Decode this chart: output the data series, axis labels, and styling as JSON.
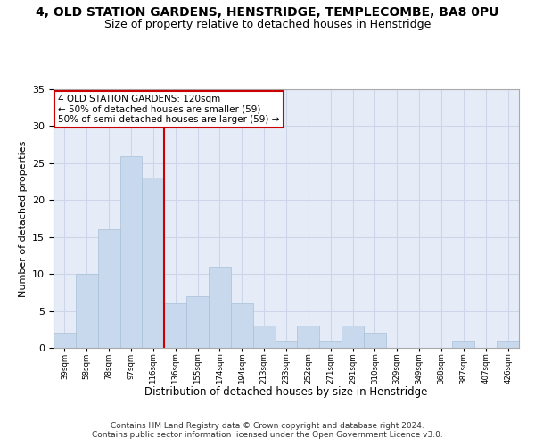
{
  "title": "4, OLD STATION GARDENS, HENSTRIDGE, TEMPLECOMBE, BA8 0PU",
  "subtitle": "Size of property relative to detached houses in Henstridge",
  "xlabel": "Distribution of detached houses by size in Henstridge",
  "ylabel": "Number of detached properties",
  "bar_values": [
    2,
    10,
    16,
    26,
    23,
    6,
    7,
    11,
    6,
    3,
    1,
    3,
    1,
    3,
    2,
    0,
    0,
    0,
    1,
    0,
    1
  ],
  "bar_labels": [
    "39sqm",
    "58sqm",
    "78sqm",
    "97sqm",
    "116sqm",
    "136sqm",
    "155sqm",
    "174sqm",
    "194sqm",
    "213sqm",
    "233sqm",
    "252sqm",
    "271sqm",
    "291sqm",
    "310sqm",
    "329sqm",
    "349sqm",
    "368sqm",
    "387sqm",
    "407sqm",
    "426sqm"
  ],
  "bar_color": "#c8d9ed",
  "bar_edge_color": "#a8c0d8",
  "grid_color": "#cdd6e8",
  "background_color": "#e6ecf7",
  "vline_color": "#cc0000",
  "annotation_text": "4 OLD STATION GARDENS: 120sqm\n← 50% of detached houses are smaller (59)\n50% of semi-detached houses are larger (59) →",
  "annotation_box_color": "#ffffff",
  "annotation_box_edge_color": "#cc0000",
  "ylim": [
    0,
    35
  ],
  "yticks": [
    0,
    5,
    10,
    15,
    20,
    25,
    30,
    35
  ],
  "footnote": "Contains HM Land Registry data © Crown copyright and database right 2024.\nContains public sector information licensed under the Open Government Licence v3.0.",
  "title_fontsize": 10,
  "subtitle_fontsize": 9,
  "footnote_fontsize": 6.5
}
